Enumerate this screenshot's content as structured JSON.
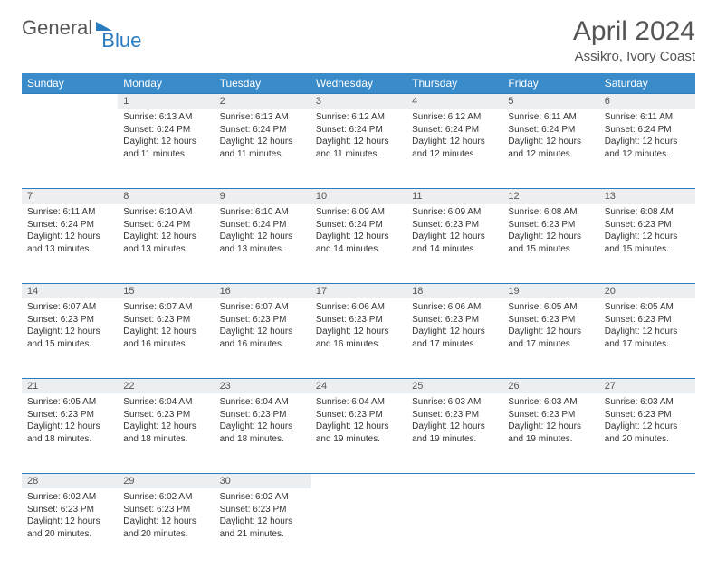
{
  "logo": {
    "text1": "General",
    "text2": "Blue"
  },
  "title": "April 2024",
  "location": "Assikro, Ivory Coast",
  "colors": {
    "header_bg": "#3a8bc9",
    "header_text": "#ffffff",
    "daynum_bg": "#eceff1",
    "border": "#2b7bbf",
    "text": "#333333"
  },
  "weekdays": [
    "Sunday",
    "Monday",
    "Tuesday",
    "Wednesday",
    "Thursday",
    "Friday",
    "Saturday"
  ],
  "weeks": [
    [
      null,
      {
        "n": "1",
        "sunrise": "Sunrise: 6:13 AM",
        "sunset": "Sunset: 6:24 PM",
        "daylight": "Daylight: 12 hours and 11 minutes."
      },
      {
        "n": "2",
        "sunrise": "Sunrise: 6:13 AM",
        "sunset": "Sunset: 6:24 PM",
        "daylight": "Daylight: 12 hours and 11 minutes."
      },
      {
        "n": "3",
        "sunrise": "Sunrise: 6:12 AM",
        "sunset": "Sunset: 6:24 PM",
        "daylight": "Daylight: 12 hours and 11 minutes."
      },
      {
        "n": "4",
        "sunrise": "Sunrise: 6:12 AM",
        "sunset": "Sunset: 6:24 PM",
        "daylight": "Daylight: 12 hours and 12 minutes."
      },
      {
        "n": "5",
        "sunrise": "Sunrise: 6:11 AM",
        "sunset": "Sunset: 6:24 PM",
        "daylight": "Daylight: 12 hours and 12 minutes."
      },
      {
        "n": "6",
        "sunrise": "Sunrise: 6:11 AM",
        "sunset": "Sunset: 6:24 PM",
        "daylight": "Daylight: 12 hours and 12 minutes."
      }
    ],
    [
      {
        "n": "7",
        "sunrise": "Sunrise: 6:11 AM",
        "sunset": "Sunset: 6:24 PM",
        "daylight": "Daylight: 12 hours and 13 minutes."
      },
      {
        "n": "8",
        "sunrise": "Sunrise: 6:10 AM",
        "sunset": "Sunset: 6:24 PM",
        "daylight": "Daylight: 12 hours and 13 minutes."
      },
      {
        "n": "9",
        "sunrise": "Sunrise: 6:10 AM",
        "sunset": "Sunset: 6:24 PM",
        "daylight": "Daylight: 12 hours and 13 minutes."
      },
      {
        "n": "10",
        "sunrise": "Sunrise: 6:09 AM",
        "sunset": "Sunset: 6:24 PM",
        "daylight": "Daylight: 12 hours and 14 minutes."
      },
      {
        "n": "11",
        "sunrise": "Sunrise: 6:09 AM",
        "sunset": "Sunset: 6:23 PM",
        "daylight": "Daylight: 12 hours and 14 minutes."
      },
      {
        "n": "12",
        "sunrise": "Sunrise: 6:08 AM",
        "sunset": "Sunset: 6:23 PM",
        "daylight": "Daylight: 12 hours and 15 minutes."
      },
      {
        "n": "13",
        "sunrise": "Sunrise: 6:08 AM",
        "sunset": "Sunset: 6:23 PM",
        "daylight": "Daylight: 12 hours and 15 minutes."
      }
    ],
    [
      {
        "n": "14",
        "sunrise": "Sunrise: 6:07 AM",
        "sunset": "Sunset: 6:23 PM",
        "daylight": "Daylight: 12 hours and 15 minutes."
      },
      {
        "n": "15",
        "sunrise": "Sunrise: 6:07 AM",
        "sunset": "Sunset: 6:23 PM",
        "daylight": "Daylight: 12 hours and 16 minutes."
      },
      {
        "n": "16",
        "sunrise": "Sunrise: 6:07 AM",
        "sunset": "Sunset: 6:23 PM",
        "daylight": "Daylight: 12 hours and 16 minutes."
      },
      {
        "n": "17",
        "sunrise": "Sunrise: 6:06 AM",
        "sunset": "Sunset: 6:23 PM",
        "daylight": "Daylight: 12 hours and 16 minutes."
      },
      {
        "n": "18",
        "sunrise": "Sunrise: 6:06 AM",
        "sunset": "Sunset: 6:23 PM",
        "daylight": "Daylight: 12 hours and 17 minutes."
      },
      {
        "n": "19",
        "sunrise": "Sunrise: 6:05 AM",
        "sunset": "Sunset: 6:23 PM",
        "daylight": "Daylight: 12 hours and 17 minutes."
      },
      {
        "n": "20",
        "sunrise": "Sunrise: 6:05 AM",
        "sunset": "Sunset: 6:23 PM",
        "daylight": "Daylight: 12 hours and 17 minutes."
      }
    ],
    [
      {
        "n": "21",
        "sunrise": "Sunrise: 6:05 AM",
        "sunset": "Sunset: 6:23 PM",
        "daylight": "Daylight: 12 hours and 18 minutes."
      },
      {
        "n": "22",
        "sunrise": "Sunrise: 6:04 AM",
        "sunset": "Sunset: 6:23 PM",
        "daylight": "Daylight: 12 hours and 18 minutes."
      },
      {
        "n": "23",
        "sunrise": "Sunrise: 6:04 AM",
        "sunset": "Sunset: 6:23 PM",
        "daylight": "Daylight: 12 hours and 18 minutes."
      },
      {
        "n": "24",
        "sunrise": "Sunrise: 6:04 AM",
        "sunset": "Sunset: 6:23 PM",
        "daylight": "Daylight: 12 hours and 19 minutes."
      },
      {
        "n": "25",
        "sunrise": "Sunrise: 6:03 AM",
        "sunset": "Sunset: 6:23 PM",
        "daylight": "Daylight: 12 hours and 19 minutes."
      },
      {
        "n": "26",
        "sunrise": "Sunrise: 6:03 AM",
        "sunset": "Sunset: 6:23 PM",
        "daylight": "Daylight: 12 hours and 19 minutes."
      },
      {
        "n": "27",
        "sunrise": "Sunrise: 6:03 AM",
        "sunset": "Sunset: 6:23 PM",
        "daylight": "Daylight: 12 hours and 20 minutes."
      }
    ],
    [
      {
        "n": "28",
        "sunrise": "Sunrise: 6:02 AM",
        "sunset": "Sunset: 6:23 PM",
        "daylight": "Daylight: 12 hours and 20 minutes."
      },
      {
        "n": "29",
        "sunrise": "Sunrise: 6:02 AM",
        "sunset": "Sunset: 6:23 PM",
        "daylight": "Daylight: 12 hours and 20 minutes."
      },
      {
        "n": "30",
        "sunrise": "Sunrise: 6:02 AM",
        "sunset": "Sunset: 6:23 PM",
        "daylight": "Daylight: 12 hours and 21 minutes."
      },
      null,
      null,
      null,
      null
    ]
  ]
}
